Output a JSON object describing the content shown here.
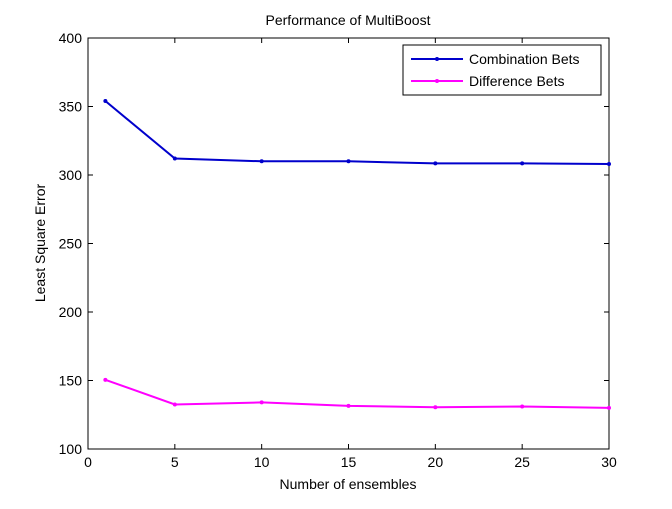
{
  "chart_data": {
    "type": "line",
    "title": "Performance of MultiBoost",
    "xlabel": "Number of ensembles",
    "ylabel": "Least Square Error",
    "xlim": [
      0,
      30
    ],
    "ylim": [
      100,
      400
    ],
    "xticks": [
      0,
      5,
      10,
      15,
      20,
      25,
      30
    ],
    "yticks": [
      100,
      150,
      200,
      250,
      300,
      350,
      400
    ],
    "grid": false,
    "legend_position": "top-right",
    "series": [
      {
        "name": "Combination Bets",
        "color": "#0000cc",
        "x": [
          1,
          5,
          10,
          15,
          20,
          25,
          30
        ],
        "y": [
          354,
          312,
          310,
          310,
          308.5,
          308.5,
          308
        ]
      },
      {
        "name": "Difference Bets",
        "color": "#ff00ff",
        "x": [
          1,
          5,
          10,
          15,
          20,
          25,
          30
        ],
        "y": [
          150.5,
          132.5,
          134,
          131.5,
          130.5,
          131,
          130
        ]
      }
    ]
  }
}
